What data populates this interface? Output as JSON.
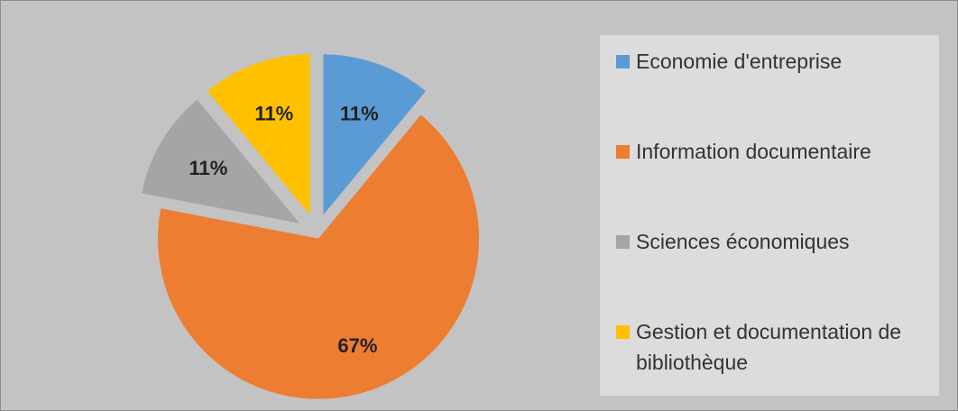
{
  "chart_data": {
    "type": "pie",
    "categories": [
      "Economie d'entreprise",
      "Information documentaire",
      "Sciences économiques",
      "Gestion et documentation de bibliothèque"
    ],
    "values": [
      11,
      67,
      11,
      11
    ],
    "value_labels": [
      "11%",
      "67%",
      "11%",
      "11%"
    ],
    "colors": [
      "#5b9bd5",
      "#ed7d31",
      "#a5a5a5",
      "#ffc000"
    ],
    "legend": "right"
  }
}
